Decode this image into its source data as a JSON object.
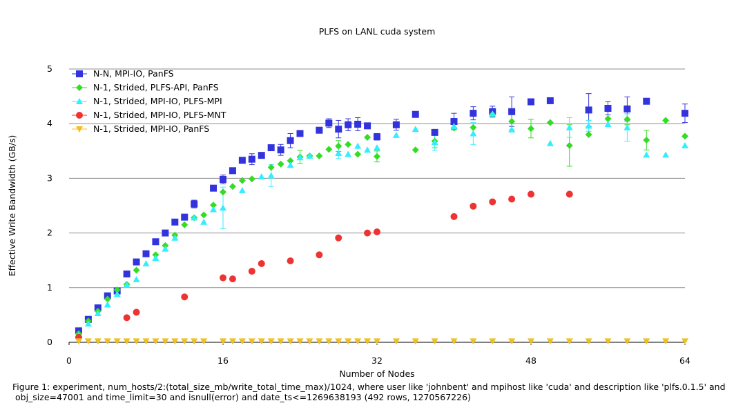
{
  "chart_data": {
    "type": "scatter",
    "title": "PLFS on LANL cuda system",
    "xlabel": "Number of Nodes",
    "ylabel": "Effective Write Bandwidth (GB/s)",
    "xlim": [
      0,
      64
    ],
    "ylim": [
      0,
      5
    ],
    "xticks": [
      0,
      16,
      32,
      48,
      64
    ],
    "yticks": [
      0,
      1,
      2,
      3,
      4,
      5
    ],
    "grid": "horizontal",
    "legend_position": "top-left",
    "series": [
      {
        "name": "N-N, MPI-IO, PanFS",
        "color": "#3333dd",
        "marker": "square",
        "points": [
          [
            1,
            0.21
          ],
          [
            2,
            0.42
          ],
          [
            3,
            0.63
          ],
          [
            4,
            0.85
          ],
          [
            5,
            0.94
          ],
          [
            6,
            1.25
          ],
          [
            7,
            1.47
          ],
          [
            8,
            1.62
          ],
          [
            9,
            1.84
          ],
          [
            10,
            2.0
          ],
          [
            11,
            2.2
          ],
          [
            12,
            2.29
          ],
          [
            13,
            2.53
          ],
          [
            15,
            2.82
          ],
          [
            16,
            2.98
          ],
          [
            17,
            3.14
          ],
          [
            18,
            3.33
          ],
          [
            19,
            3.35
          ],
          [
            20,
            3.42
          ],
          [
            21,
            3.56
          ],
          [
            22,
            3.52
          ],
          [
            23,
            3.69
          ],
          [
            24,
            3.82
          ],
          [
            26,
            3.88
          ],
          [
            27,
            4.01
          ],
          [
            28,
            3.9
          ],
          [
            29,
            3.98
          ],
          [
            30,
            3.99
          ],
          [
            31,
            3.96
          ],
          [
            32,
            3.76
          ],
          [
            34,
            3.98
          ],
          [
            36,
            4.17
          ],
          [
            38,
            3.84
          ],
          [
            40,
            4.04
          ],
          [
            42,
            4.19
          ],
          [
            44,
            4.22
          ],
          [
            46,
            4.22
          ],
          [
            48,
            4.4
          ],
          [
            50,
            4.42
          ],
          [
            54,
            4.25
          ],
          [
            56,
            4.28
          ],
          [
            58,
            4.27
          ],
          [
            60,
            4.41
          ],
          [
            64,
            4.19
          ]
        ],
        "errors": [
          [
            27,
            0.08
          ],
          [
            28,
            0.16
          ],
          [
            29,
            0.11
          ],
          [
            30,
            0.12
          ],
          [
            31,
            0.05
          ],
          [
            32,
            0.06
          ],
          [
            34,
            0.1
          ],
          [
            40,
            0.15
          ],
          [
            42,
            0.12
          ],
          [
            44,
            0.1
          ],
          [
            46,
            0.27
          ],
          [
            54,
            0.3
          ],
          [
            56,
            0.12
          ],
          [
            58,
            0.22
          ],
          [
            64,
            0.17
          ],
          [
            16,
            0.08
          ],
          [
            19,
            0.1
          ],
          [
            22,
            0.1
          ],
          [
            23,
            0.13
          ],
          [
            13,
            0.07
          ]
        ]
      },
      {
        "name": "N-1, Strided, PLFS-API, PanFS",
        "color": "#33dd22",
        "marker": "diamond",
        "points": [
          [
            1,
            0.16
          ],
          [
            2,
            0.39
          ],
          [
            3,
            0.57
          ],
          [
            4,
            0.79
          ],
          [
            5,
            0.96
          ],
          [
            6,
            1.06
          ],
          [
            7,
            1.32
          ],
          [
            9,
            1.6
          ],
          [
            10,
            1.77
          ],
          [
            11,
            1.96
          ],
          [
            12,
            2.15
          ],
          [
            13,
            2.28
          ],
          [
            14,
            2.33
          ],
          [
            15,
            2.51
          ],
          [
            16,
            2.75
          ],
          [
            17,
            2.85
          ],
          [
            18,
            2.96
          ],
          [
            19,
            2.99
          ],
          [
            21,
            3.2
          ],
          [
            22,
            3.26
          ],
          [
            23,
            3.32
          ],
          [
            24,
            3.39
          ],
          [
            25,
            3.41
          ],
          [
            26,
            3.41
          ],
          [
            27,
            3.53
          ],
          [
            28,
            3.59
          ],
          [
            29,
            3.62
          ],
          [
            30,
            3.44
          ],
          [
            31,
            3.75
          ],
          [
            32,
            3.4
          ],
          [
            36,
            3.52
          ],
          [
            38,
            3.68
          ],
          [
            40,
            3.92
          ],
          [
            42,
            3.93
          ],
          [
            44,
            4.17
          ],
          [
            46,
            4.04
          ],
          [
            48,
            3.91
          ],
          [
            50,
            4.02
          ],
          [
            52,
            3.6
          ],
          [
            54,
            3.8
          ],
          [
            56,
            4.09
          ],
          [
            58,
            4.08
          ],
          [
            60,
            3.7
          ],
          [
            62,
            4.06
          ],
          [
            64,
            3.77
          ]
        ],
        "errors": [
          [
            52,
            0.38
          ],
          [
            58,
            0.1
          ],
          [
            60,
            0.18
          ],
          [
            38,
            0.12
          ],
          [
            46,
            0.15
          ],
          [
            48,
            0.17
          ],
          [
            32,
            0.1
          ],
          [
            24,
            0.12
          ],
          [
            28,
            0.1
          ]
        ]
      },
      {
        "name": "N-1, Strided, MPI-IO, PLFS-MPI",
        "color": "#33eeff",
        "marker": "triangle-up",
        "points": [
          [
            1,
            0.13
          ],
          [
            2,
            0.34
          ],
          [
            3,
            0.53
          ],
          [
            4,
            0.69
          ],
          [
            5,
            0.88
          ],
          [
            6,
            1.05
          ],
          [
            7,
            1.15
          ],
          [
            8,
            1.44
          ],
          [
            9,
            1.54
          ],
          [
            10,
            1.71
          ],
          [
            11,
            1.91
          ],
          [
            13,
            2.28
          ],
          [
            14,
            2.2
          ],
          [
            15,
            2.43
          ],
          [
            16,
            2.46
          ],
          [
            18,
            2.78
          ],
          [
            20,
            3.03
          ],
          [
            21,
            3.05
          ],
          [
            23,
            3.24
          ],
          [
            24,
            3.38
          ],
          [
            25,
            3.41
          ],
          [
            28,
            3.46
          ],
          [
            29,
            3.44
          ],
          [
            30,
            3.59
          ],
          [
            31,
            3.52
          ],
          [
            32,
            3.56
          ],
          [
            34,
            3.79
          ],
          [
            36,
            3.9
          ],
          [
            38,
            3.66
          ],
          [
            40,
            3.95
          ],
          [
            42,
            3.82
          ],
          [
            44,
            4.18
          ],
          [
            46,
            3.89
          ],
          [
            50,
            3.64
          ],
          [
            52,
            3.93
          ],
          [
            54,
            3.96
          ],
          [
            56,
            3.99
          ],
          [
            58,
            3.93
          ],
          [
            60,
            3.43
          ],
          [
            62,
            3.43
          ],
          [
            64,
            3.6
          ]
        ],
        "errors": [
          [
            16,
            0.38
          ],
          [
            21,
            0.2
          ],
          [
            42,
            0.2
          ],
          [
            52,
            0.18
          ],
          [
            58,
            0.25
          ],
          [
            28,
            0.1
          ],
          [
            38,
            0.15
          ],
          [
            54,
            0.1
          ]
        ]
      },
      {
        "name": "N-1, Strided, MPI-IO, PLFS-MNT",
        "color": "#ee3333",
        "marker": "circle",
        "points": [
          [
            1,
            0.09
          ],
          [
            6,
            0.45
          ],
          [
            7,
            0.55
          ],
          [
            12,
            0.83
          ],
          [
            16,
            1.18
          ],
          [
            17,
            1.16
          ],
          [
            19,
            1.3
          ],
          [
            20,
            1.44
          ],
          [
            23,
            1.49
          ],
          [
            26,
            1.6
          ],
          [
            28,
            1.91
          ],
          [
            31,
            2.0
          ],
          [
            32,
            2.02
          ],
          [
            40,
            2.3
          ],
          [
            42,
            2.49
          ],
          [
            44,
            2.57
          ],
          [
            46,
            2.62
          ],
          [
            48,
            2.71
          ],
          [
            52,
            2.71
          ]
        ],
        "errors": []
      },
      {
        "name": "N-1, Strided, MPI-IO, PanFS",
        "color": "#f0c020",
        "marker": "triangle-down",
        "points": [
          [
            1,
            0.02
          ],
          [
            2,
            0.02
          ],
          [
            3,
            0.02
          ],
          [
            4,
            0.02
          ],
          [
            5,
            0.02
          ],
          [
            6,
            0.02
          ],
          [
            7,
            0.02
          ],
          [
            8,
            0.02
          ],
          [
            9,
            0.02
          ],
          [
            10,
            0.02
          ],
          [
            11,
            0.02
          ],
          [
            12,
            0.02
          ],
          [
            13,
            0.02
          ],
          [
            14,
            0.02
          ],
          [
            16,
            0.02
          ],
          [
            17,
            0.02
          ],
          [
            18,
            0.02
          ],
          [
            19,
            0.02
          ],
          [
            20,
            0.02
          ],
          [
            21,
            0.02
          ],
          [
            22,
            0.02
          ],
          [
            23,
            0.02
          ],
          [
            24,
            0.02
          ],
          [
            25,
            0.02
          ],
          [
            26,
            0.02
          ],
          [
            27,
            0.02
          ],
          [
            28,
            0.02
          ],
          [
            29,
            0.02
          ],
          [
            30,
            0.02
          ],
          [
            31,
            0.02
          ],
          [
            32,
            0.02
          ],
          [
            34,
            0.02
          ],
          [
            36,
            0.02
          ],
          [
            38,
            0.02
          ],
          [
            40,
            0.02
          ],
          [
            42,
            0.02
          ],
          [
            44,
            0.02
          ],
          [
            46,
            0.02
          ],
          [
            48,
            0.02
          ],
          [
            50,
            0.02
          ],
          [
            52,
            0.02
          ],
          [
            54,
            0.02
          ],
          [
            56,
            0.02
          ],
          [
            58,
            0.02
          ],
          [
            60,
            0.02
          ],
          [
            62,
            0.02
          ],
          [
            64,
            0.02
          ]
        ],
        "errors": []
      }
    ]
  },
  "caption": "Figure 1: experiment, num_hosts/2:(total_size_mb/write_total_time_max)/1024, where user like 'johnbent' and mpihost like 'cuda' and description like 'plfs.0.1.5' and\n obj_size=47001 and time_limit=30 and isnull(error) and date_ts<=1269638193 (492 rows, 1270567226)"
}
